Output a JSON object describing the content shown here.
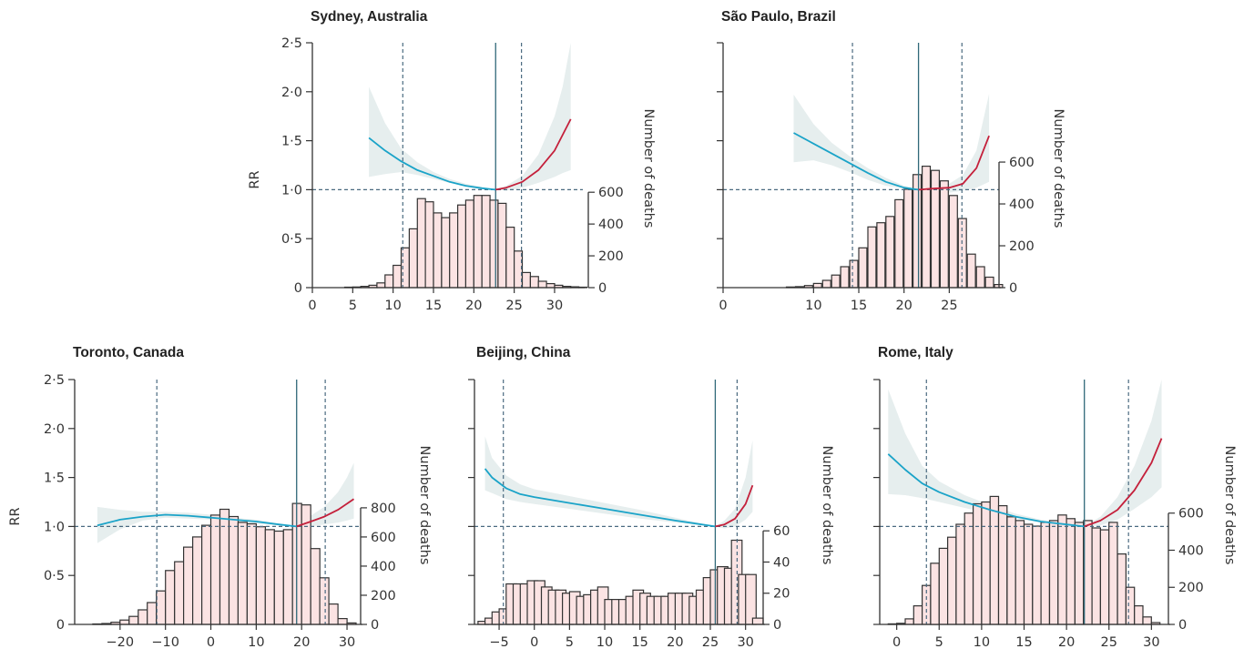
{
  "chart_data": [
    {
      "type": "line",
      "title": "Sydney, Australia",
      "ylabel": "RR",
      "y2label": "Number of deaths",
      "xlim": [
        0,
        33.5
      ],
      "ylim": [
        0,
        2.5
      ],
      "xticks": [
        0,
        5,
        10,
        15,
        20,
        25,
        30
      ],
      "xtick_labels": [
        "0",
        "5",
        "10",
        "15",
        "20",
        "25",
        "30"
      ],
      "yticks": [
        0,
        0.5,
        1.0,
        1.5,
        2.0,
        2.5
      ],
      "ytick_labels": [
        "0",
        "0·5",
        "1·0",
        "1·5",
        "2·0",
        "2·5"
      ],
      "y2ticks": [
        0,
        200,
        400,
        600
      ],
      "y2tick_labels": [
        "0",
        "200",
        "400",
        "600"
      ],
      "y2max": 1540,
      "mmt": 22.7,
      "percentile_lines": [
        11.2,
        25.9
      ],
      "series": [
        {
          "name": "cold",
          "color": "#1aa3c8",
          "x": [
            7,
            9,
            11,
            13,
            15,
            17,
            19,
            21,
            22.7
          ],
          "values": [
            1.53,
            1.4,
            1.29,
            1.2,
            1.14,
            1.08,
            1.04,
            1.015,
            1.0
          ]
        },
        {
          "name": "heat",
          "color": "#c4203b",
          "x": [
            22.7,
            24,
            26,
            28,
            30,
            32
          ],
          "values": [
            1.0,
            1.02,
            1.08,
            1.2,
            1.4,
            1.72
          ]
        }
      ],
      "ci_x": [
        7,
        9,
        11,
        13,
        15,
        17,
        19,
        21,
        22.7,
        24,
        26,
        28,
        30,
        31,
        32
      ],
      "ci_lower": [
        1.13,
        1.16,
        1.18,
        1.15,
        1.11,
        1.07,
        1.04,
        1.01,
        1.0,
        0.99,
        1.02,
        1.07,
        1.13,
        1.17,
        1.2
      ],
      "ci_upper": [
        2.05,
        1.68,
        1.42,
        1.28,
        1.18,
        1.11,
        1.06,
        1.03,
        1.0,
        1.04,
        1.14,
        1.36,
        1.75,
        2.05,
        2.5
      ],
      "hist_bins": [
        4,
        5,
        6,
        7,
        8,
        9,
        10,
        11,
        12,
        13,
        14,
        15,
        16,
        17,
        18,
        19,
        20,
        21,
        22,
        23,
        24,
        25,
        26,
        27,
        28,
        29,
        30,
        31,
        32,
        33
      ],
      "hist_counts": [
        3,
        4,
        8,
        15,
        30,
        80,
        140,
        250,
        370,
        560,
        540,
        470,
        440,
        470,
        520,
        550,
        580,
        580,
        550,
        530,
        380,
        230,
        95,
        70,
        40,
        25,
        15,
        8,
        5,
        3
      ]
    },
    {
      "type": "line",
      "title": "São Paulo, Brazil",
      "ylabel": "",
      "y2label": "Number of deaths",
      "xlim": [
        0,
        30.5
      ],
      "ylim": [
        0,
        2.5
      ],
      "xticks": [
        0,
        10,
        15,
        20,
        25
      ],
      "xtick_labels": [
        "0",
        "10",
        "15",
        "20",
        "25"
      ],
      "yticks": [
        0,
        0.5,
        1.0,
        1.5,
        2.0,
        2.5
      ],
      "ytick_labels": [],
      "y2ticks": [
        0,
        200,
        400,
        600
      ],
      "y2tick_labels": [
        "0",
        "200",
        "400",
        "600"
      ],
      "y2max": 1170,
      "mmt": 21.6,
      "percentile_lines": [
        14.3,
        26.4
      ],
      "series": [
        {
          "name": "cold",
          "color": "#1aa3c8",
          "x": [
            7.8,
            10,
            12,
            14,
            16,
            18,
            20,
            21.6
          ],
          "values": [
            1.58,
            1.47,
            1.37,
            1.27,
            1.17,
            1.08,
            1.02,
            1.0
          ]
        },
        {
          "name": "heat",
          "color": "#c4203b",
          "x": [
            21.6,
            23,
            25,
            26.5,
            28,
            29.4
          ],
          "values": [
            1.0,
            1.01,
            1.02,
            1.06,
            1.22,
            1.55
          ]
        }
      ],
      "ci_x": [
        7.8,
        10,
        12,
        14,
        16,
        18,
        20,
        21.6,
        23,
        25,
        26.5,
        28,
        29.4
      ],
      "ci_lower": [
        1.28,
        1.3,
        1.25,
        1.18,
        1.1,
        1.04,
        1.01,
        1.0,
        0.98,
        0.97,
        0.99,
        1.02,
        1.08
      ],
      "ci_upper": [
        1.97,
        1.67,
        1.48,
        1.34,
        1.22,
        1.12,
        1.04,
        1.0,
        1.04,
        1.06,
        1.15,
        1.4,
        1.98
      ],
      "hist_bins": [
        7,
        8,
        9,
        10,
        11,
        12,
        13,
        14,
        15,
        16,
        17,
        18,
        19,
        20,
        21,
        22,
        23,
        24,
        25,
        26,
        27,
        28,
        29,
        30
      ],
      "hist_counts": [
        3,
        5,
        10,
        20,
        35,
        60,
        100,
        130,
        190,
        290,
        310,
        340,
        420,
        470,
        540,
        580,
        560,
        510,
        440,
        330,
        160,
        100,
        50,
        15
      ],
      "hist_bin_width": 0.9
    },
    {
      "type": "line",
      "title": "Toronto, Canada",
      "ylabel": "RR",
      "y2label": "Number of deaths",
      "xlim": [
        -30,
        33
      ],
      "ylim": [
        0,
        2.5
      ],
      "xticks": [
        -20,
        -10,
        0,
        10,
        20,
        30
      ],
      "xtick_labels": [
        "−20",
        "−10",
        "0",
        "10",
        "20",
        "30"
      ],
      "yticks": [
        0,
        0.5,
        1.0,
        1.5,
        2.0,
        2.5
      ],
      "ytick_labels": [
        "0",
        "0·5",
        "1·0",
        "1·5",
        "2·0",
        "2·5"
      ],
      "y2ticks": [
        0,
        200,
        400,
        600,
        800
      ],
      "y2tick_labels": [
        "0",
        "200",
        "400",
        "600",
        "800"
      ],
      "y2max": 1680,
      "mmt": 18.9,
      "percentile_lines": [
        -11.9,
        25.2
      ],
      "series": [
        {
          "name": "cold",
          "color": "#1aa3c8",
          "x": [
            -25,
            -20,
            -15,
            -10,
            -5,
            0,
            5,
            10,
            15,
            18.9
          ],
          "values": [
            1.01,
            1.07,
            1.1,
            1.12,
            1.11,
            1.09,
            1.07,
            1.05,
            1.02,
            1.0
          ]
        },
        {
          "name": "heat",
          "color": "#c4203b",
          "x": [
            18.9,
            22,
            25,
            28,
            31.5
          ],
          "values": [
            1.0,
            1.05,
            1.1,
            1.17,
            1.28
          ]
        }
      ],
      "ci_x": [
        -25,
        -20,
        -15,
        -10,
        -5,
        0,
        5,
        10,
        15,
        18.9,
        22,
        25,
        28,
        30,
        31.5
      ],
      "ci_lower": [
        0.83,
        0.97,
        1.06,
        1.09,
        1.08,
        1.07,
        1.05,
        1.03,
        1.01,
        1.0,
        1.0,
        1.02,
        1.04,
        1.06,
        1.08
      ],
      "ci_upper": [
        1.2,
        1.17,
        1.15,
        1.15,
        1.14,
        1.12,
        1.09,
        1.07,
        1.03,
        1.0,
        1.11,
        1.2,
        1.35,
        1.5,
        1.65
      ],
      "hist_bins": [
        -26,
        -24,
        -22,
        -20,
        -18,
        -16,
        -14,
        -12,
        -10,
        -8,
        -6,
        -4,
        -2,
        0,
        2,
        4,
        6,
        8,
        10,
        12,
        14,
        16,
        18,
        20,
        22,
        24,
        26,
        28,
        30
      ],
      "hist_counts": [
        3,
        6,
        15,
        30,
        55,
        100,
        150,
        230,
        370,
        430,
        530,
        600,
        680,
        750,
        790,
        740,
        700,
        690,
        670,
        650,
        640,
        650,
        830,
        820,
        520,
        320,
        140,
        40,
        10
      ],
      "hist_bin_width": 2
    },
    {
      "type": "line",
      "title": "Beijing, China",
      "ylabel": "",
      "y2label": "Number of deaths",
      "xlim": [
        -8.5,
        32.5
      ],
      "ylim": [
        0,
        2.5
      ],
      "xticks": [
        -5,
        0,
        5,
        10,
        15,
        20,
        25,
        30
      ],
      "xtick_labels": [
        "−5",
        "0",
        "5",
        "10",
        "15",
        "20",
        "25",
        "30"
      ],
      "yticks": [
        0,
        0.5,
        1.0,
        1.5,
        2.0,
        2.5
      ],
      "ytick_labels": [],
      "y2ticks": [
        0,
        20,
        40,
        60
      ],
      "y2tick_labels": [
        "0",
        "20",
        "40",
        "60"
      ],
      "y2max": 157,
      "mmt": 25.7,
      "percentile_lines": [
        -4.4,
        28.8
      ],
      "series": [
        {
          "name": "cold",
          "color": "#1aa3c8",
          "x": [
            -7,
            -6,
            -4,
            -2,
            0,
            5,
            10,
            15,
            20,
            25.7
          ],
          "values": [
            1.59,
            1.5,
            1.39,
            1.33,
            1.3,
            1.24,
            1.18,
            1.12,
            1.06,
            1.0
          ]
        },
        {
          "name": "heat",
          "color": "#c4203b",
          "x": [
            25.7,
            27,
            28.5,
            30,
            31
          ],
          "values": [
            1.0,
            1.02,
            1.08,
            1.23,
            1.42
          ]
        }
      ],
      "ci_x": [
        -7,
        -6,
        -4,
        -2,
        0,
        5,
        10,
        15,
        20,
        25.7,
        27,
        28.5,
        30,
        31
      ],
      "ci_lower": [
        1.37,
        1.34,
        1.28,
        1.25,
        1.23,
        1.18,
        1.13,
        1.08,
        1.04,
        1.0,
        0.98,
        1.0,
        1.07,
        1.15
      ],
      "ci_upper": [
        1.92,
        1.7,
        1.52,
        1.43,
        1.38,
        1.31,
        1.24,
        1.17,
        1.09,
        1.0,
        1.06,
        1.18,
        1.5,
        1.88
      ],
      "hist_bins": [
        -8,
        -7,
        -6,
        -5,
        -4,
        -3,
        -2,
        -1,
        0,
        1,
        2,
        3,
        4,
        5,
        6,
        7,
        8,
        9,
        10,
        11,
        12,
        13,
        14,
        15,
        16,
        17,
        18,
        19,
        20,
        21,
        22,
        23,
        24,
        25,
        26,
        27,
        28,
        29,
        30,
        31
      ],
      "hist_counts": [
        2,
        4,
        8,
        10,
        26,
        26,
        26,
        28,
        28,
        24,
        22,
        22,
        20,
        21,
        18,
        19,
        22,
        24,
        16,
        16,
        16,
        18,
        22,
        20,
        18,
        18,
        18,
        20,
        20,
        20,
        18,
        22,
        30,
        35,
        37,
        36,
        54,
        32,
        32,
        4
      ],
      "hist_bin_width": 1.5
    },
    {
      "type": "line",
      "title": "Rome, Italy",
      "ylabel": "",
      "y2label": "Number of deaths",
      "xlim": [
        -2,
        32
      ],
      "ylim": [
        0,
        2.5
      ],
      "xticks": [
        0,
        5,
        10,
        15,
        20,
        25,
        30
      ],
      "xtick_labels": [
        "0",
        "5",
        "10",
        "15",
        "20",
        "25",
        "30"
      ],
      "yticks": [
        0,
        0.5,
        1.0,
        1.5,
        2.0,
        2.5
      ],
      "ytick_labels": [],
      "y2ticks": [
        0,
        200,
        400,
        600
      ],
      "y2tick_labels": [
        "0",
        "200",
        "400",
        "600"
      ],
      "y2max": 1320,
      "mmt": 22.1,
      "percentile_lines": [
        3.5,
        27.3
      ],
      "series": [
        {
          "name": "cold",
          "color": "#1aa3c8",
          "x": [
            -1,
            1,
            3,
            5,
            8,
            11,
            14,
            17,
            20,
            22.1
          ],
          "values": [
            1.74,
            1.58,
            1.44,
            1.35,
            1.25,
            1.17,
            1.1,
            1.05,
            1.02,
            1.0
          ]
        },
        {
          "name": "heat",
          "color": "#c4203b",
          "x": [
            22.1,
            24,
            26,
            28,
            30,
            31.2
          ],
          "values": [
            1.0,
            1.06,
            1.17,
            1.37,
            1.65,
            1.9
          ]
        }
      ],
      "ci_x": [
        -1,
        1,
        3,
        5,
        8,
        11,
        14,
        17,
        20,
        22.1,
        24,
        26,
        28,
        30,
        31.2
      ],
      "ci_lower": [
        1.33,
        1.32,
        1.29,
        1.25,
        1.19,
        1.13,
        1.08,
        1.04,
        1.01,
        1.0,
        1.01,
        1.07,
        1.18,
        1.3,
        1.4
      ],
      "ci_upper": [
        2.4,
        1.95,
        1.62,
        1.46,
        1.32,
        1.22,
        1.13,
        1.07,
        1.03,
        1.0,
        1.1,
        1.3,
        1.62,
        2.08,
        2.5
      ],
      "hist_bins": [
        -1,
        0,
        1,
        2,
        3,
        4,
        5,
        6,
        7,
        8,
        9,
        10,
        11,
        12,
        13,
        14,
        15,
        16,
        17,
        18,
        19,
        20,
        21,
        22,
        23,
        24,
        25,
        26,
        27,
        28,
        29,
        30
      ],
      "hist_counts": [
        3,
        6,
        30,
        100,
        210,
        330,
        410,
        470,
        540,
        600,
        650,
        660,
        690,
        640,
        580,
        560,
        540,
        530,
        550,
        560,
        590,
        570,
        550,
        560,
        520,
        510,
        550,
        380,
        200,
        100,
        40,
        10
      ]
    }
  ]
}
